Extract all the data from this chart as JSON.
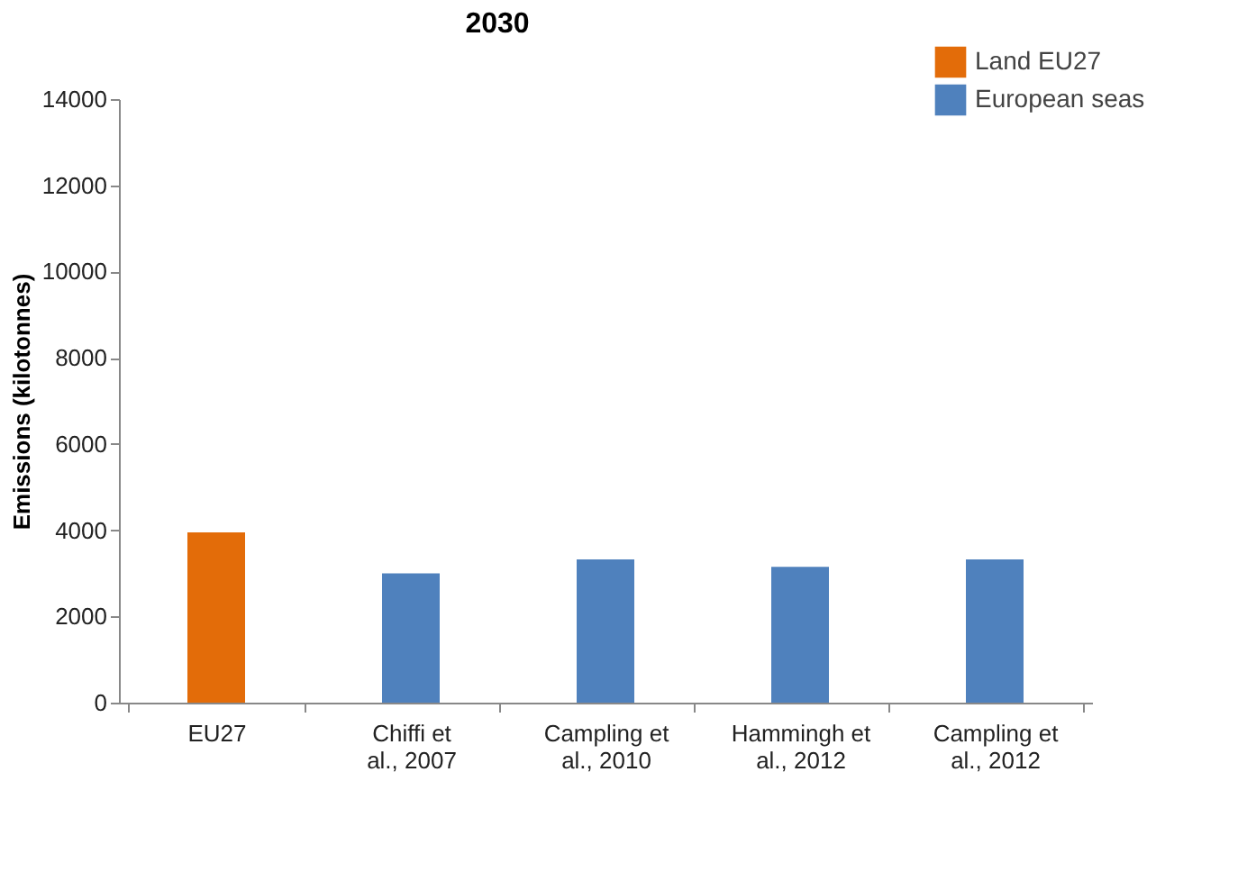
{
  "chart_data": {
    "type": "bar",
    "title": "2030",
    "ylabel": "Emissions (kilotonnes)",
    "categories": [
      "EU27",
      "Chiffi et al., 2007",
      "Campling et al., 2010",
      "Hammingh et al., 2012",
      "Campling et al., 2012"
    ],
    "series": [
      {
        "name": "Land EU27",
        "color": "#e36c09",
        "values": [
          3950,
          null,
          null,
          null,
          null
        ]
      },
      {
        "name": "European seas",
        "color": "#4f81bd",
        "values": [
          null,
          3000,
          3320,
          3150,
          3320
        ]
      }
    ],
    "ylim": [
      0,
      14000
    ],
    "yticks": [
      0,
      2000,
      4000,
      6000,
      8000,
      10000,
      12000,
      14000
    ],
    "grid": false,
    "legend": "top right"
  }
}
